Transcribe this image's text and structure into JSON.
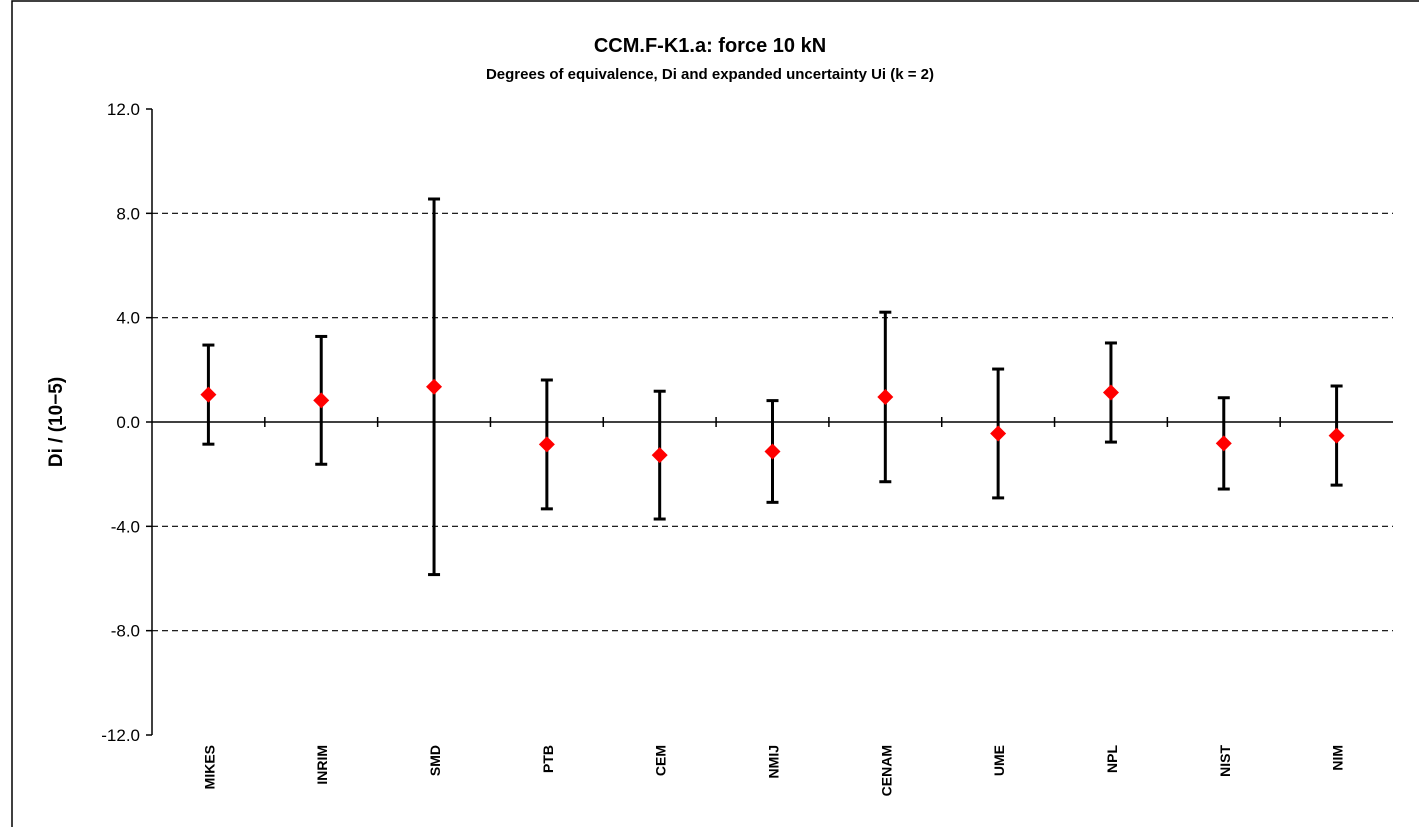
{
  "chart_data": {
    "type": "errorbar",
    "title": "CCM.F-K1.a: force 10 kN",
    "subtitle": "Degrees of equivalence, Di  and expanded uncertainty Ui (k = 2)",
    "y_label": "Di / (10−5)",
    "categories": [
      "MIKES",
      "INRIM",
      "SMD",
      "PTB",
      "CEM",
      "NMIJ",
      "CENAM",
      "UME",
      "NPL",
      "NIST",
      "NIM"
    ],
    "values": [
      1.05,
      0.83,
      1.35,
      -0.86,
      -1.27,
      -1.13,
      0.96,
      -0.44,
      1.13,
      -0.82,
      -0.52
    ],
    "errors": [
      1.9,
      2.45,
      7.2,
      2.47,
      2.45,
      1.95,
      3.25,
      2.47,
      1.9,
      1.75,
      1.9
    ],
    "color": "#ff0000",
    "error_color": "#000000",
    "ylim": [
      -12,
      12
    ],
    "yticks": [
      {
        "value": -12,
        "label": "-12.0"
      },
      {
        "value": -8,
        "label": "-8.0"
      },
      {
        "value": -4,
        "label": "-4.0"
      },
      {
        "value": 0,
        "label": "0.0"
      },
      {
        "value": 4,
        "label": "4.0"
      },
      {
        "value": 8,
        "label": "8.0"
      },
      {
        "value": 12,
        "label": "12.0"
      }
    ],
    "grid": true
  }
}
